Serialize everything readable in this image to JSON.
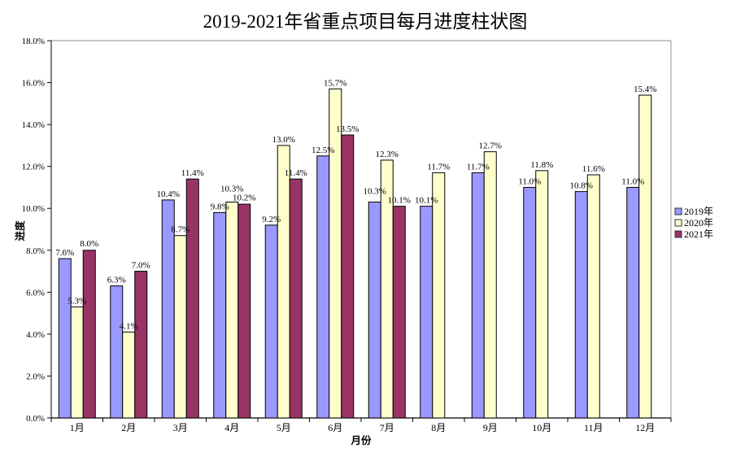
{
  "chart_data": {
    "type": "bar",
    "title": "2019-2021年省重点项目每月进度柱状图",
    "xlabel": "月份",
    "ylabel": "进度",
    "categories": [
      "1月",
      "2月",
      "3月",
      "4月",
      "5月",
      "6月",
      "7月",
      "8月",
      "9月",
      "10月",
      "11月",
      "12月"
    ],
    "series": [
      {
        "name": "2019年",
        "color": "#9999FF",
        "values": [
          7.6,
          6.3,
          10.4,
          9.8,
          9.2,
          12.5,
          10.3,
          10.1,
          11.7,
          11.0,
          10.8,
          11.0
        ]
      },
      {
        "name": "2020年",
        "color": "#FFFFCC",
        "values": [
          5.3,
          4.1,
          8.7,
          10.3,
          13.0,
          15.7,
          12.3,
          11.7,
          12.7,
          11.8,
          11.6,
          15.4
        ]
      },
      {
        "name": "2021年",
        "color": "#993366",
        "values": [
          8.0,
          7.0,
          11.4,
          10.2,
          11.4,
          13.5,
          10.1,
          null,
          null,
          null,
          null,
          null
        ]
      }
    ],
    "ylim": [
      0,
      18
    ],
    "ytick_step": 2,
    "ytick_labels": [
      "0.0%",
      "2.0%",
      "4.0%",
      "6.0%",
      "8.0%",
      "10.0%",
      "12.0%",
      "14.0%",
      "16.0%",
      "18.0%"
    ],
    "data_label_format": "0.0%",
    "grid": false,
    "legend_position": "right",
    "bar_border_color": "#000000",
    "axis_color": "#000000",
    "plot_border_color": "#909090",
    "label_color": "#000000"
  }
}
